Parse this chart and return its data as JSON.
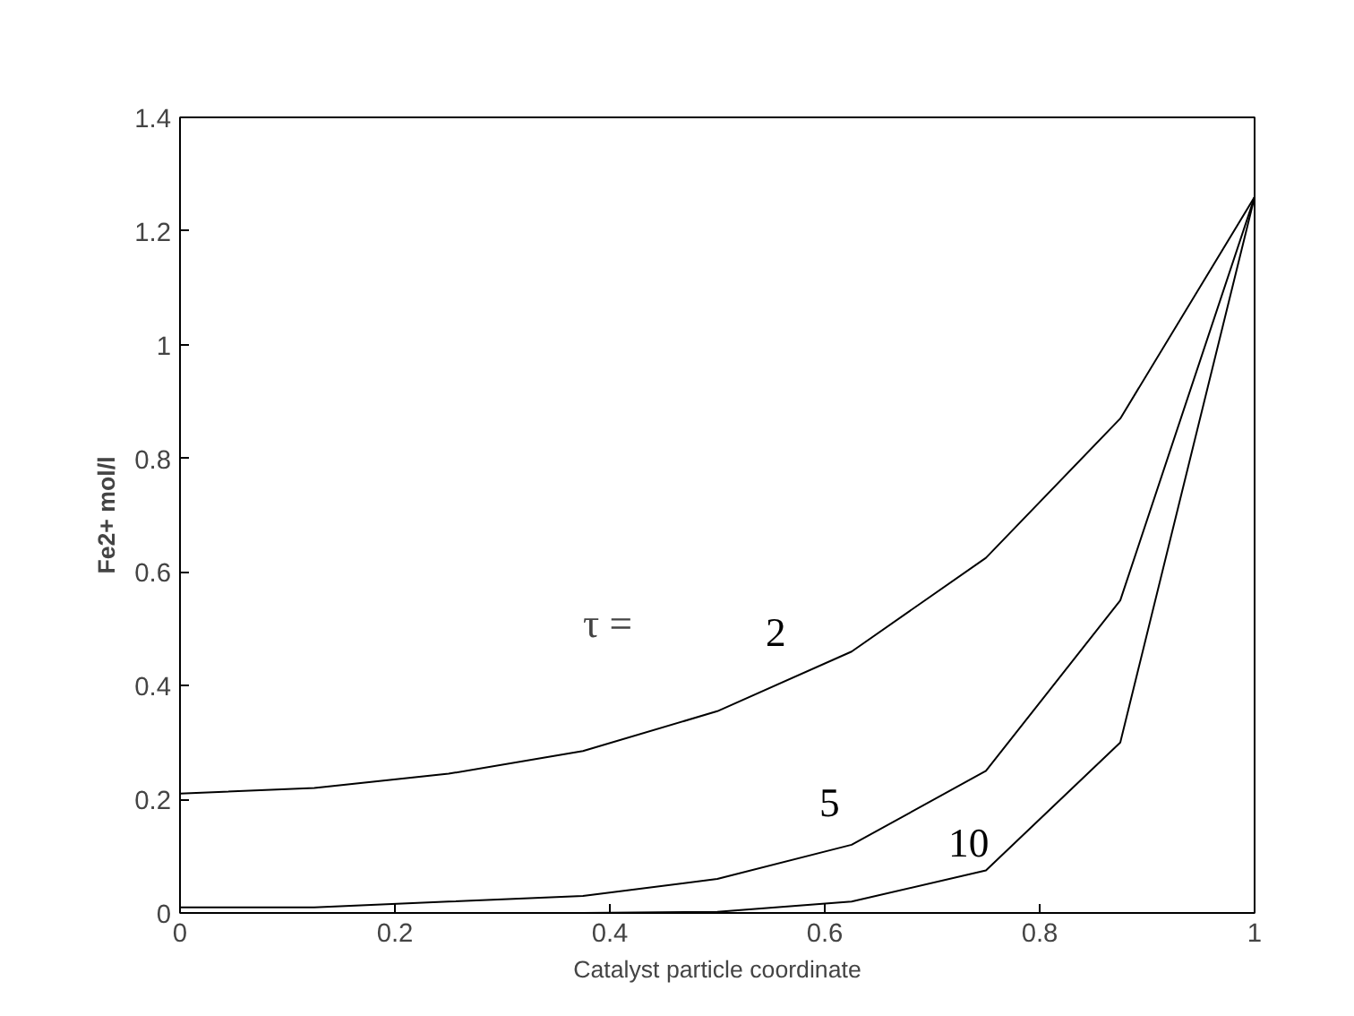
{
  "chart_data": {
    "type": "line",
    "xlabel": "Catalyst particle coordinate",
    "ylabel": "Fe2+ mol/l",
    "x": [
      0,
      0.125,
      0.25,
      0.375,
      0.5,
      0.625,
      0.75,
      0.875,
      1
    ],
    "series": [
      {
        "name": "2",
        "color": "#000000",
        "values": [
          0.21,
          0.22,
          0.245,
          0.285,
          0.355,
          0.46,
          0.625,
          0.87,
          1.26
        ]
      },
      {
        "name": "5",
        "color": "#000000",
        "values": [
          0.01,
          0.01,
          0.02,
          0.03,
          0.06,
          0.12,
          0.25,
          0.55,
          1.26
        ]
      },
      {
        "name": "10",
        "color": "#000000",
        "values": [
          0,
          0,
          0,
          0,
          0.002,
          0.02,
          0.075,
          0.3,
          1.26
        ]
      }
    ],
    "annotations": [
      "τ ="
    ],
    "xlim": [
      0,
      1
    ],
    "ylim": [
      0,
      1.4
    ],
    "xticks": [
      0,
      0.2,
      0.4,
      0.6,
      0.8,
      1
    ],
    "yticks": [
      0,
      0.2,
      0.4,
      0.6,
      0.8,
      1,
      1.2,
      1.4
    ],
    "grid": false,
    "marker": "none",
    "line_style": "solid"
  }
}
